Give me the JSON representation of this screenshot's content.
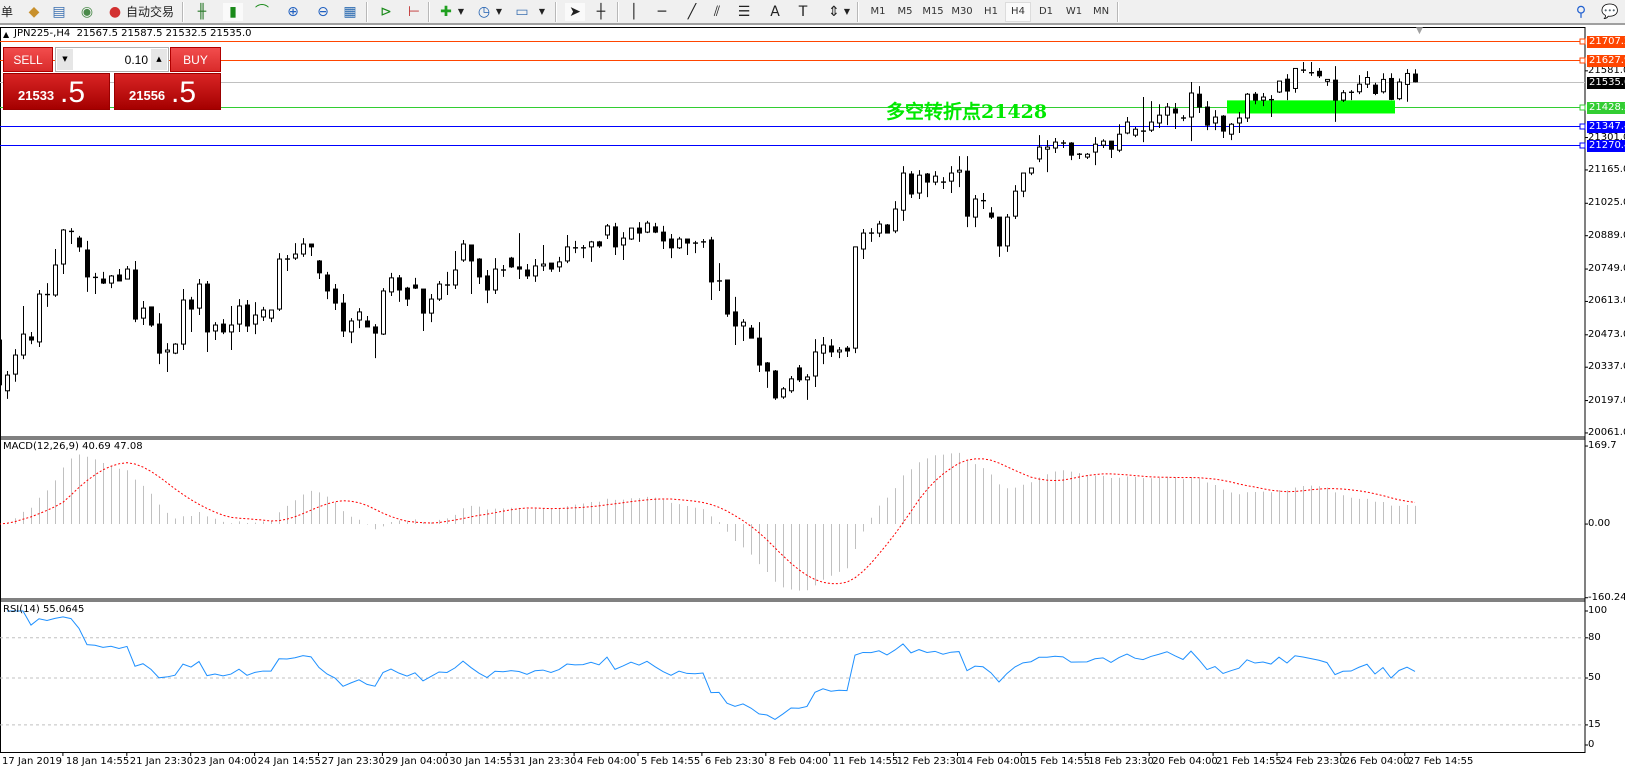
{
  "toolbar": {
    "partial_label": "单",
    "autotrade_label": "自动交易",
    "icons": [
      "market-watch-icon",
      "data-window-icon",
      "navigator-icon",
      "signals-icon",
      "autotrading-icon",
      "bar-chart-icon",
      "candlestick-icon",
      "line-chart-icon",
      "zoom-in-icon",
      "zoom-out-icon",
      "tile-windows-icon",
      "autoscroll-icon",
      "chart-shift-icon",
      "new-chart-icon",
      "periods-icon",
      "templates-icon",
      "cursor-icon",
      "crosshair-icon",
      "vertical-line-icon",
      "horizontal-line-icon",
      "trendline-icon",
      "equidistant-channel-icon",
      "fibonacci-icon",
      "text-icon",
      "text-label-icon",
      "arrows-icon",
      "search-icon",
      "chat-icon"
    ],
    "timeframes": [
      "M1",
      "M5",
      "M15",
      "M30",
      "H1",
      "H4",
      "D1",
      "W1",
      "MN"
    ],
    "active_timeframe": "H4"
  },
  "chart": {
    "title": "JPN225-,H4  21567.5 21587.5 21532.5 21535.0",
    "symbol": "JPN225-",
    "period": "H4"
  },
  "order_panel": {
    "sell_label": "SELL",
    "buy_label": "BUY",
    "lot": "0.10",
    "sell_price_main": "21533",
    "sell_price_frac": ".5",
    "buy_price_main": "21556",
    "buy_price_frac": ".5"
  },
  "annotation": {
    "text": "多空转折点21428",
    "color": "#00e800",
    "zone_color": "#00ff00",
    "zone_price_range": [
      21402,
      21457
    ],
    "zone_candle_range": [
      154,
      174
    ]
  },
  "colors": {
    "bull_body": "#ffffff",
    "bear_body": "#000000",
    "macd_bars": "#c0c0c0",
    "macd_signal": "#ff0000",
    "rsi_line": "#1e90ff"
  },
  "chart_data": {
    "type": "candlestick",
    "columns": [
      "open",
      "high",
      "low",
      "close"
    ],
    "ylim": [
      20044,
      21765
    ],
    "price_ticks": [
      "21581.0",
      "21301.0",
      "21165.0",
      "21025.0",
      "20889.0",
      "20749.0",
      "20613.0",
      "20473.0",
      "20337.0",
      "20197.0",
      "20061.0"
    ],
    "current_price": {
      "value": "21535.0",
      "color": "#c0c0c0",
      "label_bg": "#000000"
    },
    "hlines": [
      {
        "value": "21707.2",
        "color": "#ff4500"
      },
      {
        "value": "21627.9",
        "color": "#ff4500"
      },
      {
        "value": "21428.2",
        "color": "#32cd32"
      },
      {
        "value": "21347.4",
        "color": "#0000ff"
      },
      {
        "value": "21270.4",
        "color": "#0000ff"
      }
    ],
    "time_labels": [
      "17 Jan 2019",
      "18 Jan 14:55",
      "21 Jan 23:30",
      "23 Jan 04:00",
      "24 Jan 14:55",
      "27 Jan 23:30",
      "29 Jan 04:00",
      "30 Jan 14:55",
      "31 Jan 23:30",
      "4 Feb 04:00",
      "5 Feb 14:55",
      "6 Feb 23:30",
      "8 Feb 04:00",
      "11 Feb 14:55",
      "12 Feb 23:30",
      "14 Feb 04:00",
      "15 Feb 14:55",
      "18 Feb 23:30",
      "20 Feb 04:00",
      "21 Feb 14:55",
      "24 Feb 23:30",
      "26 Feb 04:00",
      "27 Feb 14:55"
    ],
    "candles": [
      [
        20451,
        20459,
        20242,
        20263
      ],
      [
        20238,
        20321,
        20204,
        20304
      ],
      [
        20308,
        20413,
        20276,
        20388
      ],
      [
        20388,
        20594,
        20371,
        20476
      ],
      [
        20464,
        20485,
        20434,
        20451
      ],
      [
        20443,
        20661,
        20422,
        20644
      ],
      [
        20642,
        20690,
        20590,
        20638
      ],
      [
        20640,
        20833,
        20632,
        20766
      ],
      [
        20770,
        20917,
        20728,
        20913
      ],
      [
        20907,
        20921,
        20854,
        20903
      ],
      [
        20879,
        20888,
        20821,
        20842
      ],
      [
        20829,
        20867,
        20653,
        20716
      ],
      [
        20714,
        20733,
        20644,
        20710
      ],
      [
        20707,
        20737,
        20686,
        20690
      ],
      [
        20690,
        20724,
        20669,
        20720
      ],
      [
        20724,
        20749,
        20699,
        20699
      ],
      [
        20707,
        20762,
        20707,
        20749
      ],
      [
        20745,
        20783,
        20526,
        20539
      ],
      [
        20543,
        20615,
        20514,
        20585
      ],
      [
        20590,
        20590,
        20506,
        20514
      ],
      [
        20518,
        20564,
        20350,
        20396
      ],
      [
        20401,
        20438,
        20317,
        20409
      ],
      [
        20396,
        20438,
        20392,
        20434
      ],
      [
        20434,
        20665,
        20409,
        20619
      ],
      [
        20619,
        20632,
        20485,
        20581
      ],
      [
        20585,
        20707,
        20556,
        20686
      ],
      [
        20686,
        20699,
        20401,
        20485
      ],
      [
        20489,
        20526,
        20451,
        20514
      ],
      [
        20518,
        20539,
        20476,
        20485
      ],
      [
        20485,
        20594,
        20409,
        20514
      ],
      [
        20518,
        20623,
        20485,
        20594
      ],
      [
        20598,
        20619,
        20485,
        20510
      ],
      [
        20518,
        20610,
        20476,
        20556
      ],
      [
        20548,
        20590,
        20531,
        20577
      ],
      [
        20543,
        20577,
        20526,
        20577
      ],
      [
        20581,
        20816,
        20573,
        20791
      ],
      [
        20791,
        20808,
        20741,
        20789
      ],
      [
        20795,
        20858,
        20787,
        20812
      ],
      [
        20812,
        20879,
        20800,
        20854
      ],
      [
        20854,
        20854,
        20804,
        20842
      ],
      [
        20783,
        20787,
        20707,
        20733
      ],
      [
        20724,
        20737,
        20623,
        20657
      ],
      [
        20665,
        20686,
        20577,
        20606
      ],
      [
        20606,
        20644,
        20464,
        20489
      ],
      [
        20485,
        20543,
        20438,
        20531
      ],
      [
        20535,
        20585,
        20501,
        20569
      ],
      [
        20531,
        20552,
        20506,
        20506
      ],
      [
        20506,
        20518,
        20375,
        20480
      ],
      [
        20476,
        20669,
        20472,
        20657
      ],
      [
        20653,
        20733,
        20636,
        20712
      ],
      [
        20712,
        20724,
        20611,
        20661
      ],
      [
        20669,
        20674,
        20594,
        20623
      ],
      [
        20682,
        20712,
        20665,
        20669
      ],
      [
        20665,
        20665,
        20489,
        20564
      ],
      [
        20564,
        20644,
        20526,
        20623
      ],
      [
        20623,
        20699,
        20615,
        20686
      ],
      [
        20682,
        20737,
        20640,
        20680
      ],
      [
        20682,
        20825,
        20665,
        20745
      ],
      [
        20787,
        20871,
        20779,
        20854
      ],
      [
        20850,
        20850,
        20644,
        20783
      ],
      [
        20791,
        20795,
        20686,
        20716
      ],
      [
        20720,
        20745,
        20606,
        20661
      ],
      [
        20661,
        20795,
        20644,
        20749
      ],
      [
        20745,
        20766,
        20716,
        20743
      ],
      [
        20795,
        20800,
        20754,
        20758
      ],
      [
        20758,
        20900,
        20707,
        20749
      ],
      [
        20745,
        20770,
        20707,
        20720
      ],
      [
        20720,
        20791,
        20695,
        20762
      ],
      [
        20762,
        20850,
        20741,
        20770
      ],
      [
        20774,
        20774,
        20737,
        20749
      ],
      [
        20758,
        20800,
        20737,
        20779
      ],
      [
        20783,
        20892,
        20774,
        20842
      ],
      [
        20838,
        20867,
        20816,
        20836
      ],
      [
        20836,
        20850,
        20795,
        20838
      ],
      [
        20842,
        20867,
        20779,
        20863
      ],
      [
        20863,
        20867,
        20838,
        20846
      ],
      [
        20892,
        20938,
        20875,
        20930
      ],
      [
        20926,
        20943,
        20808,
        20842
      ],
      [
        20850,
        20904,
        20787,
        20879
      ],
      [
        20875,
        20921,
        20871,
        20921
      ],
      [
        20921,
        20946,
        20863,
        20900
      ],
      [
        20904,
        20951,
        20900,
        20942
      ],
      [
        20926,
        20943,
        20900,
        20904
      ],
      [
        20904,
        20930,
        20833,
        20867
      ],
      [
        20875,
        20896,
        20795,
        20838
      ],
      [
        20838,
        20884,
        20833,
        20875
      ],
      [
        20875,
        20875,
        20808,
        20858
      ],
      [
        20858,
        20867,
        20816,
        20856
      ],
      [
        20863,
        20875,
        20838,
        20861
      ],
      [
        20871,
        20884,
        20619,
        20695
      ],
      [
        20699,
        20774,
        20657,
        20697
      ],
      [
        20703,
        20703,
        20548,
        20560
      ],
      [
        20569,
        20632,
        20430,
        20510
      ],
      [
        20510,
        20539,
        20447,
        20526
      ],
      [
        20501,
        20514,
        20459,
        20459
      ],
      [
        20459,
        20526,
        20317,
        20346
      ],
      [
        20355,
        20359,
        20250,
        20321
      ],
      [
        20321,
        20325,
        20200,
        20208
      ],
      [
        20212,
        20254,
        20204,
        20246
      ],
      [
        20238,
        20300,
        20229,
        20288
      ],
      [
        20334,
        20346,
        20275,
        20284
      ],
      [
        20284,
        20308,
        20200,
        20296
      ],
      [
        20300,
        20455,
        20254,
        20401
      ],
      [
        20396,
        20464,
        20350,
        20430
      ],
      [
        20426,
        20455,
        20380,
        20401
      ],
      [
        20401,
        20422,
        20375,
        20409
      ],
      [
        20417,
        20426,
        20380,
        20405
      ],
      [
        20417,
        20842,
        20396,
        20842
      ],
      [
        20833,
        20917,
        20791,
        20900
      ],
      [
        20900,
        20921,
        20863,
        20898
      ],
      [
        20900,
        20951,
        20883,
        20938
      ],
      [
        20934,
        20938,
        20900,
        20900
      ],
      [
        20909,
        21034,
        20900,
        21001
      ],
      [
        20996,
        21181,
        20951,
        21152
      ],
      [
        21148,
        21160,
        21047,
        21064
      ],
      [
        21068,
        21164,
        21043,
        21143
      ],
      [
        21148,
        21152,
        21051,
        21114
      ],
      [
        21114,
        21160,
        21101,
        21139
      ],
      [
        21114,
        21135,
        21085,
        21112
      ],
      [
        21118,
        21181,
        21068,
        21152
      ],
      [
        21156,
        21223,
        21093,
        21164
      ],
      [
        21160,
        21223,
        20925,
        20971
      ],
      [
        20967,
        21060,
        20925,
        21043
      ],
      [
        21034,
        21068,
        21001,
        21036
      ],
      [
        20984,
        21009,
        20959,
        20967
      ],
      [
        20967,
        20967,
        20800,
        20846
      ],
      [
        20846,
        20980,
        20821,
        20967
      ],
      [
        20971,
        21101,
        20959,
        21076
      ],
      [
        21076,
        21152,
        21051,
        21152
      ],
      [
        21152,
        21173,
        21143,
        21173
      ],
      [
        21211,
        21311,
        21198,
        21261
      ],
      [
        21252,
        21290,
        21156,
        21261
      ],
      [
        21257,
        21299,
        21236,
        21282
      ],
      [
        21278,
        21290,
        21257,
        21276
      ],
      [
        21278,
        21282,
        21206,
        21227
      ],
      [
        21231,
        21236,
        21211,
        21229
      ],
      [
        21219,
        21236,
        21211,
        21231
      ],
      [
        21240,
        21303,
        21185,
        21273
      ],
      [
        21269,
        21294,
        21257,
        21286
      ],
      [
        21286,
        21286,
        21215,
        21252
      ],
      [
        21248,
        21357,
        21240,
        21315
      ],
      [
        21320,
        21387,
        21315,
        21366
      ],
      [
        21311,
        21345,
        21303,
        21336
      ],
      [
        21328,
        21471,
        21282,
        21326
      ],
      [
        21332,
        21454,
        21324,
        21366
      ],
      [
        21362,
        21441,
        21341,
        21395
      ],
      [
        21395,
        21446,
        21353,
        21429
      ],
      [
        21421,
        21446,
        21337,
        21404
      ],
      [
        21383,
        21395,
        21370,
        21381
      ],
      [
        21387,
        21534,
        21286,
        21488
      ],
      [
        21483,
        21517,
        21404,
        21429
      ],
      [
        21429,
        21454,
        21332,
        21353
      ],
      [
        21362,
        21416,
        21332,
        21387
      ],
      [
        21391,
        21395,
        21299,
        21328
      ],
      [
        21315,
        21362,
        21290,
        21357
      ],
      [
        21362,
        21408,
        21320,
        21383
      ],
      [
        21383,
        21488,
        21366,
        21483
      ],
      [
        21483,
        21492,
        21441,
        21458
      ],
      [
        21458,
        21488,
        21433,
        21471
      ],
      [
        21460,
        21479,
        21387,
        21456
      ],
      [
        21492,
        21538,
        21488,
        21538
      ],
      [
        21546,
        21567,
        21458,
        21496
      ],
      [
        21507,
        21592,
        21489,
        21591
      ],
      [
        21584,
        21618,
        21572,
        21582
      ],
      [
        21573,
        21618,
        21560,
        21571
      ],
      [
        21579,
        21593,
        21551,
        21560
      ],
      [
        21537,
        21545,
        21518,
        21545
      ],
      [
        21542,
        21601,
        21367,
        21458
      ],
      [
        21458,
        21500,
        21450,
        21489
      ],
      [
        21490,
        21500,
        21458,
        21491
      ],
      [
        21493,
        21563,
        21483,
        21525
      ],
      [
        21525,
        21580,
        21509,
        21553
      ],
      [
        21521,
        21531,
        21479,
        21486
      ],
      [
        21493,
        21571,
        21486,
        21545
      ],
      [
        21549,
        21571,
        21458,
        21461
      ],
      [
        21464,
        21549,
        21458,
        21534
      ],
      [
        21524,
        21588,
        21451,
        21570
      ],
      [
        21567.5,
        21587.5,
        21532.5,
        21535.0
      ]
    ],
    "macd": {
      "label": "MACD(12,26,9) 40.69 47.08",
      "params": [
        12,
        26,
        9
      ],
      "ylim": [
        -163,
        185
      ],
      "ticks": [
        "169.7",
        "0.00",
        "-160.24"
      ],
      "tick_values": [
        169.7,
        0,
        -160.24
      ]
    },
    "rsi": {
      "label": "RSI(14) 55.0645",
      "period": 14,
      "ticks": [
        "100",
        "80",
        "50",
        "15",
        "0"
      ],
      "levels": [
        80,
        50,
        15
      ]
    }
  }
}
